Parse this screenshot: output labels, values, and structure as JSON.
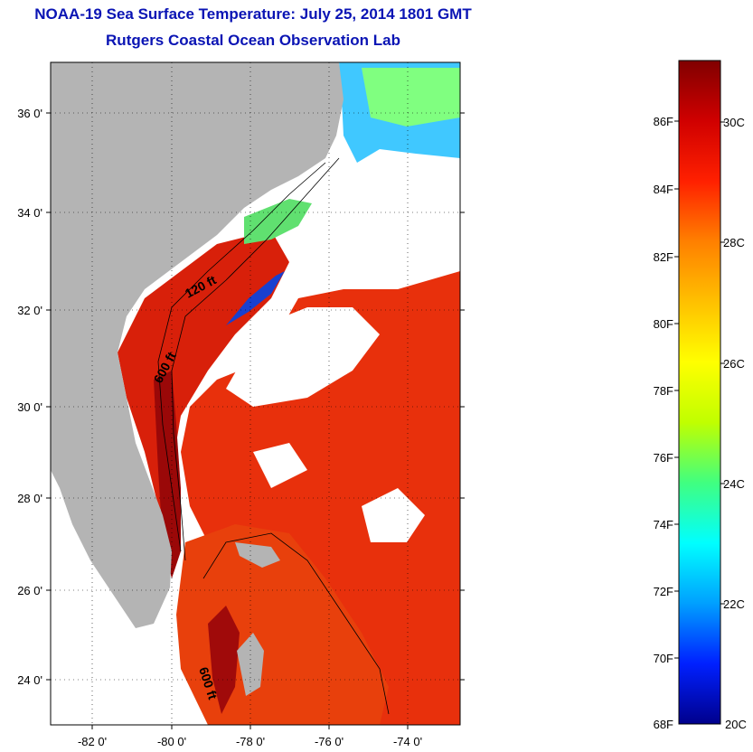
{
  "title": "NOAA-19 Sea Surface Temperature:  July 25, 2014 1801 GMT",
  "subtitle": "Rutgers Coastal Ocean Observation Lab",
  "map": {
    "lat_ticks": [
      "36 0'",
      "34 0'",
      "32 0'",
      "30 0'",
      "28 0'",
      "26 0'",
      "24 0'"
    ],
    "lon_ticks": [
      "-82 0'",
      "-80 0'",
      "-78 0'",
      "-76 0'",
      "-74 0'"
    ],
    "contour_labels": [
      "120 ft",
      "600 ft",
      "600 ft"
    ],
    "colors": {
      "land": "#b4b4b4",
      "cloud": "#ffffff",
      "warm": "#e8280a",
      "hot": "#9a0808"
    }
  },
  "colorbar": {
    "f_ticks": [
      "86F",
      "84F",
      "82F",
      "80F",
      "78F",
      "76F",
      "74F",
      "72F",
      "70F"
    ],
    "f_min": "68F",
    "c_ticks": [
      "30C",
      "28C",
      "26C",
      "24C",
      "22C"
    ],
    "c_min": "20C",
    "stops": [
      "#00008c",
      "#0020ff",
      "#00a0ff",
      "#00ffff",
      "#40ff80",
      "#c0ff00",
      "#ffff00",
      "#ffc000",
      "#ff8000",
      "#ff2000",
      "#d00000",
      "#800000"
    ]
  }
}
